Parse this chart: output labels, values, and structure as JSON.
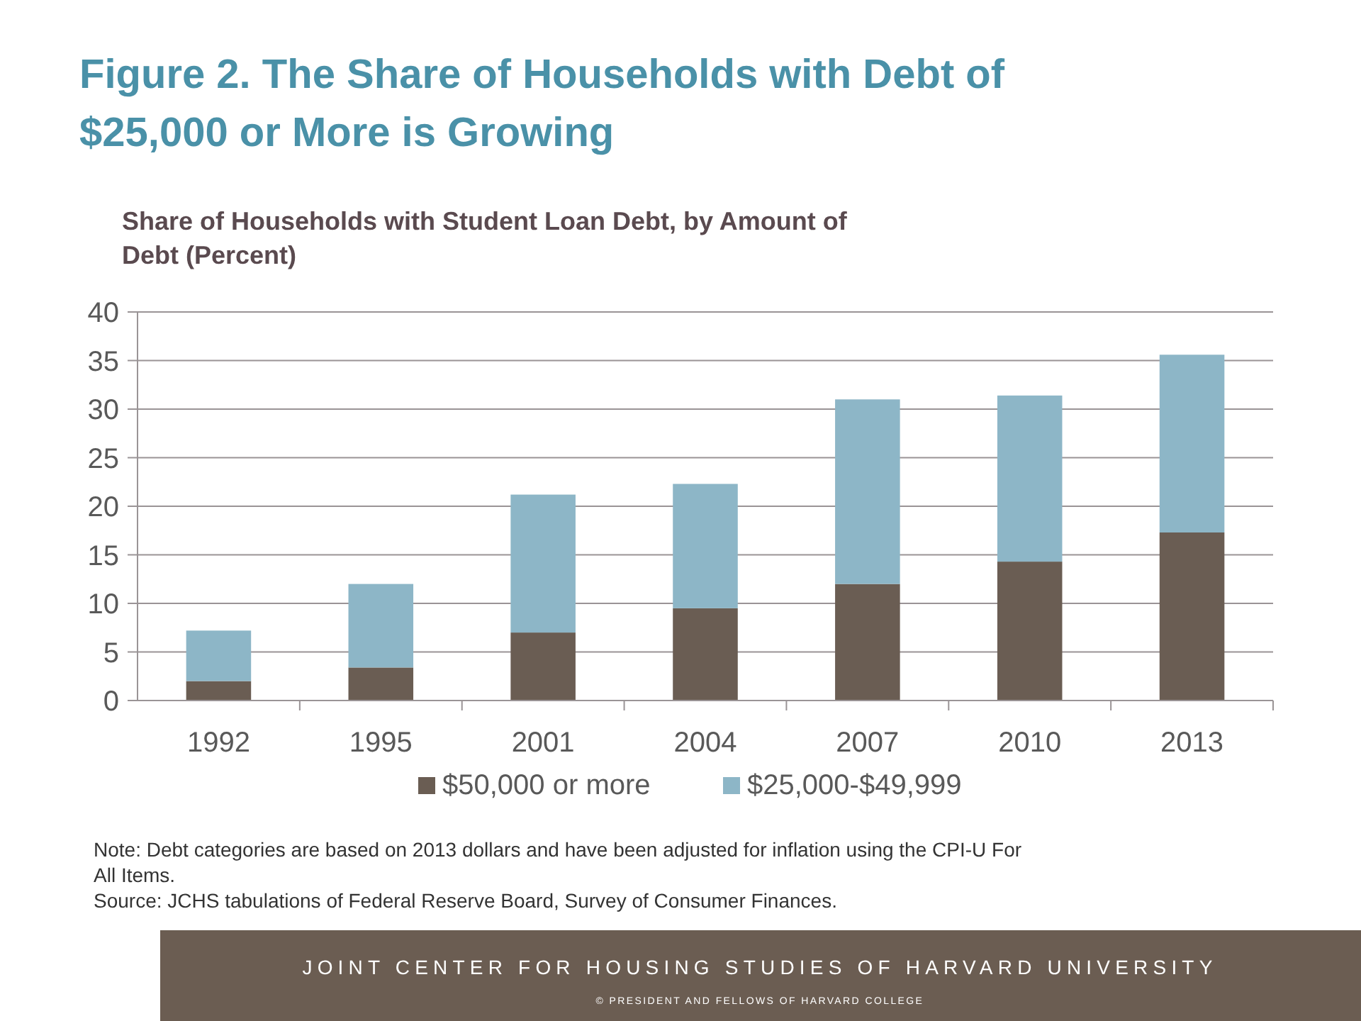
{
  "chart_data": {
    "type": "bar",
    "title": "Figure 2. The Share of Households with Debt of $25,000 or More is Growing",
    "subtitle": "Share of Households with Student Loan Debt, by Amount of Debt (Percent)",
    "categories": [
      "1992",
      "1995",
      "2001",
      "2004",
      "2007",
      "2010",
      "2013"
    ],
    "stacked": true,
    "series": [
      {
        "name": "$50,000 or more",
        "color": "#6a5d53",
        "values": [
          2.0,
          3.4,
          7.0,
          9.5,
          12.0,
          14.3,
          17.3
        ]
      },
      {
        "name": "$25,000-$49,999",
        "color": "#8db6c7",
        "values": [
          5.2,
          8.6,
          14.2,
          12.8,
          19.0,
          17.1,
          18.3
        ]
      }
    ],
    "ylim": [
      0,
      40
    ],
    "yticks": [
      0,
      5,
      10,
      15,
      20,
      25,
      30,
      35,
      40
    ],
    "grid": "y",
    "legend": "bottom",
    "annotations": [
      "Note: Debt categories are based on 2013 dollars and have been adjusted for inflation using the CPI-U For All Items.",
      "Source: JCHS tabulations of Federal Reserve Board, Survey of Consumer Finances.",
      "JOINT CENTER FOR HOUSING STUDIES OF HARVARD UNIVERSITY",
      "© PRESIDENT AND FELLOWS OF HARVARD COLLEGE"
    ]
  }
}
